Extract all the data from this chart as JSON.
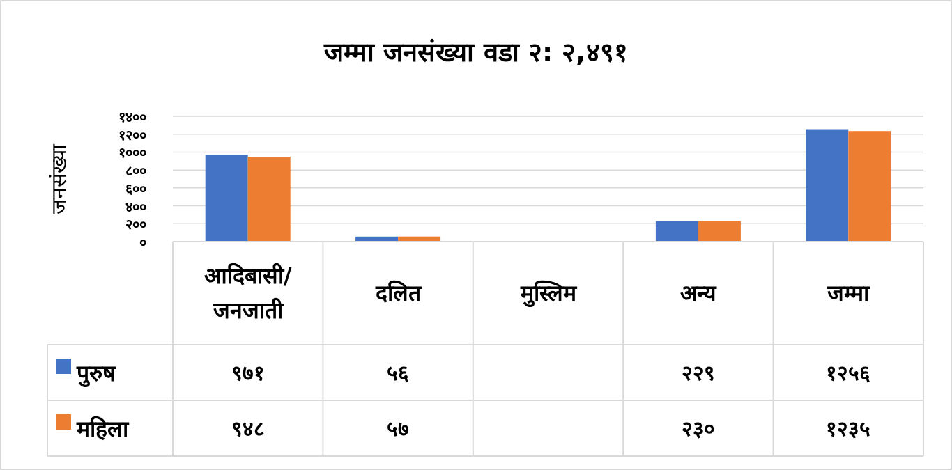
{
  "chart_data": {
    "type": "bar",
    "title": "जम्मा जनसंख्या वडा २: २,४९१",
    "ylabel": "जनसंख्या",
    "categories": [
      "आदिबासी/जनजाती",
      "दलित",
      "मुस्लिम",
      "अन्य",
      "जम्मा"
    ],
    "series": [
      {
        "name": "पुरुष",
        "color": "#4472c4",
        "values": [
          971,
          56,
          null,
          229,
          1256
        ],
        "value_labels": [
          "९७१",
          "५६",
          null,
          "२२९",
          "१२५६"
        ]
      },
      {
        "name": "महिला",
        "color": "#ed7d31",
        "values": [
          948,
          57,
          null,
          230,
          1235
        ],
        "value_labels": [
          "९४८",
          "५७",
          null,
          "२३०",
          "१२३५"
        ]
      }
    ],
    "ylim": [
      0,
      1400
    ],
    "yticks": [
      {
        "value": 0,
        "label": "०"
      },
      {
        "value": 200,
        "label": "२००"
      },
      {
        "value": 400,
        "label": "४००"
      },
      {
        "value": 600,
        "label": "६००"
      },
      {
        "value": 800,
        "label": "८००"
      },
      {
        "value": 1000,
        "label": "१०००"
      },
      {
        "value": 1200,
        "label": "१२००"
      },
      {
        "value": 1400,
        "label": "१४००"
      }
    ],
    "grid": "y",
    "legend": "bottom left"
  }
}
